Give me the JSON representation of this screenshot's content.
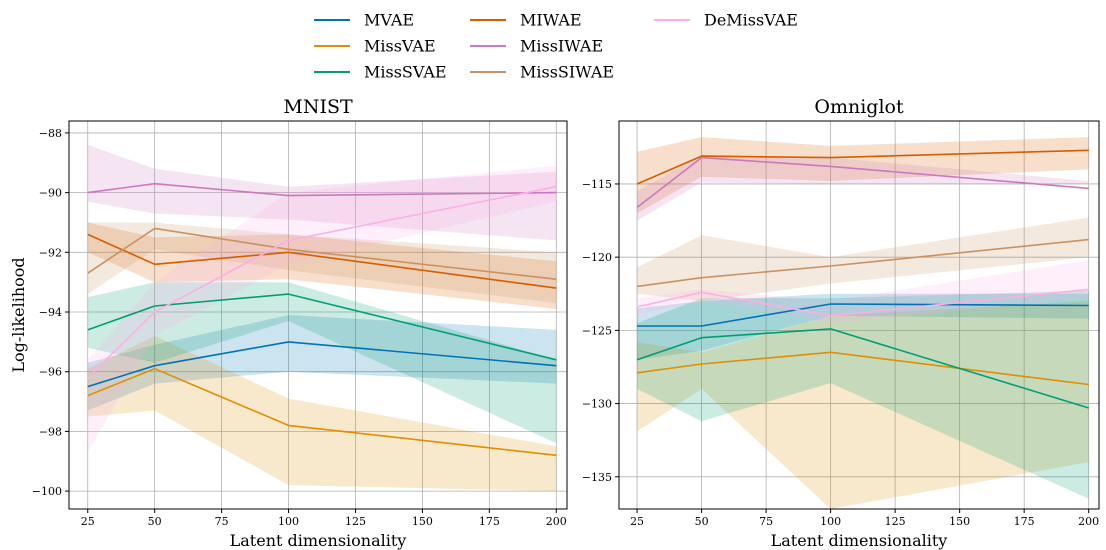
{
  "legend": {
    "columns": 3,
    "entries": [
      {
        "name": "MVAE",
        "color": "#0173b2"
      },
      {
        "name": "MissVAE",
        "color": "#de8f05"
      },
      {
        "name": "MissSVAE",
        "color": "#029e73"
      },
      {
        "name": "MIWAE",
        "color": "#d55e00"
      },
      {
        "name": "MissIWAE",
        "color": "#cc78bc"
      },
      {
        "name": "MissSIWAE",
        "color": "#ca9161"
      },
      {
        "name": "DeMissVAE",
        "color": "#fbafe4"
      }
    ]
  },
  "chart_data": [
    {
      "type": "line",
      "title": "MNIST",
      "xlabel": "Latent dimensionality",
      "ylabel": "Log-likelihood",
      "x": [
        25,
        50,
        100,
        200
      ],
      "xticks": [
        25,
        50,
        75,
        100,
        125,
        150,
        175,
        200
      ],
      "xlim": [
        18,
        204
      ],
      "ylim": [
        -100.6,
        -87.6
      ],
      "yticks": [
        -88,
        -90,
        -92,
        -94,
        -96,
        -98,
        -100
      ],
      "ytick_labels": [
        "−88",
        "−90",
        "−92",
        "−94",
        "−96",
        "−98",
        "−100"
      ],
      "grid": true,
      "series": [
        {
          "name": "MVAE",
          "mean": [
            -96.5,
            -95.8,
            -95.0,
            -95.8
          ],
          "lower": [
            -97.3,
            -96.4,
            -96.0,
            -96.4
          ],
          "upper": [
            -95.7,
            -95.1,
            -94.1,
            -94.6
          ]
        },
        {
          "name": "MissVAE",
          "mean": [
            -96.8,
            -95.9,
            -97.8,
            -98.8
          ],
          "lower": [
            -97.5,
            -97.3,
            -99.8,
            -100.0
          ],
          "upper": [
            -95.9,
            -94.8,
            -96.9,
            -98.5
          ]
        },
        {
          "name": "MissSVAE",
          "mean": [
            -94.6,
            -93.8,
            -93.4,
            -95.6
          ],
          "lower": [
            -95.2,
            -95.7,
            -94.3,
            -98.4
          ],
          "upper": [
            -93.5,
            -93.0,
            -93.0,
            -95.6
          ]
        },
        {
          "name": "MIWAE",
          "mean": [
            -91.4,
            -92.4,
            -92.0,
            -93.2
          ],
          "lower": [
            -92.0,
            -93.0,
            -92.9,
            -93.9
          ],
          "upper": [
            -91.0,
            -91.5,
            -91.4,
            -92.3
          ]
        },
        {
          "name": "MissIWAE",
          "mean": [
            -90.0,
            -89.7,
            -90.1,
            -90.0
          ],
          "lower": [
            -90.3,
            -90.7,
            -90.9,
            -91.6
          ],
          "upper": [
            -88.4,
            -89.2,
            -89.8,
            -89.3
          ]
        },
        {
          "name": "MissSIWAE",
          "mean": [
            -92.7,
            -91.2,
            -91.9,
            -92.9
          ],
          "lower": [
            -93.4,
            -91.9,
            -92.6,
            -93.7
          ],
          "upper": [
            -91.0,
            -91.0,
            -91.4,
            -92.0
          ]
        },
        {
          "name": "DeMissVAE",
          "mean": [
            -96.2,
            -94.0,
            -91.6,
            -89.8
          ],
          "lower": [
            -98.7,
            -94.8,
            -92.4,
            -90.3
          ],
          "upper": [
            -95.6,
            -93.0,
            -90.0,
            -89.1
          ]
        }
      ]
    },
    {
      "type": "line",
      "title": "Omniglot",
      "xlabel": "Latent dimensionality",
      "ylabel": "",
      "x": [
        25,
        50,
        100,
        200
      ],
      "xticks": [
        25,
        50,
        75,
        100,
        125,
        150,
        175,
        200
      ],
      "xlim": [
        18,
        204
      ],
      "ylim": [
        -137.2,
        -110.7
      ],
      "yticks": [
        -115,
        -120,
        -125,
        -130,
        -135
      ],
      "ytick_labels": [
        "−115",
        "−120",
        "−125",
        "−130",
        "−135"
      ],
      "grid": true,
      "series": [
        {
          "name": "MVAE",
          "mean": [
            -124.7,
            -124.7,
            -123.2,
            -123.3
          ],
          "lower": [
            -127.0,
            -126.4,
            -124.0,
            -124.2
          ],
          "upper": [
            -123.5,
            -123.0,
            -122.5,
            -122.5
          ]
        },
        {
          "name": "MissVAE",
          "mean": [
            -127.9,
            -127.3,
            -126.5,
            -128.7
          ],
          "lower": [
            -131.9,
            -129.0,
            -137.2,
            -134.0
          ],
          "upper": [
            -125.8,
            -126.5,
            -124.0,
            -123.0
          ]
        },
        {
          "name": "MissSVAE",
          "mean": [
            -127.0,
            -125.5,
            -124.9,
            -130.3
          ],
          "lower": [
            -129.0,
            -131.2,
            -128.6,
            -136.5
          ],
          "upper": [
            -124.5,
            -122.8,
            -122.8,
            -122.3
          ]
        },
        {
          "name": "MIWAE",
          "mean": [
            -115.0,
            -113.1,
            -113.2,
            -112.7
          ],
          "lower": [
            -117.0,
            -114.5,
            -114.8,
            -114.0
          ],
          "upper": [
            -112.8,
            -111.8,
            -112.4,
            -111.8
          ]
        },
        {
          "name": "MissIWAE",
          "mean": [
            -116.6,
            -113.2,
            -113.8,
            -115.3
          ],
          "lower": [
            -117.5,
            -114.9,
            -115.0,
            -115.0
          ],
          "upper": [
            -115.5,
            -113.0,
            -113.2,
            -114.8
          ]
        },
        {
          "name": "MissSIWAE",
          "mean": [
            -122.0,
            -121.4,
            -120.6,
            -118.8
          ],
          "lower": [
            -122.5,
            -123.0,
            -121.8,
            -120.0
          ],
          "upper": [
            -120.7,
            -118.5,
            -120.0,
            -117.3
          ]
        },
        {
          "name": "DeMissVAE",
          "mean": [
            -123.4,
            -122.4,
            -124.0,
            -122.2
          ],
          "lower": [
            -123.9,
            -123.0,
            -124.5,
            -122.8
          ],
          "upper": [
            -122.8,
            -122.2,
            -123.0,
            -120.2
          ]
        }
      ]
    }
  ]
}
